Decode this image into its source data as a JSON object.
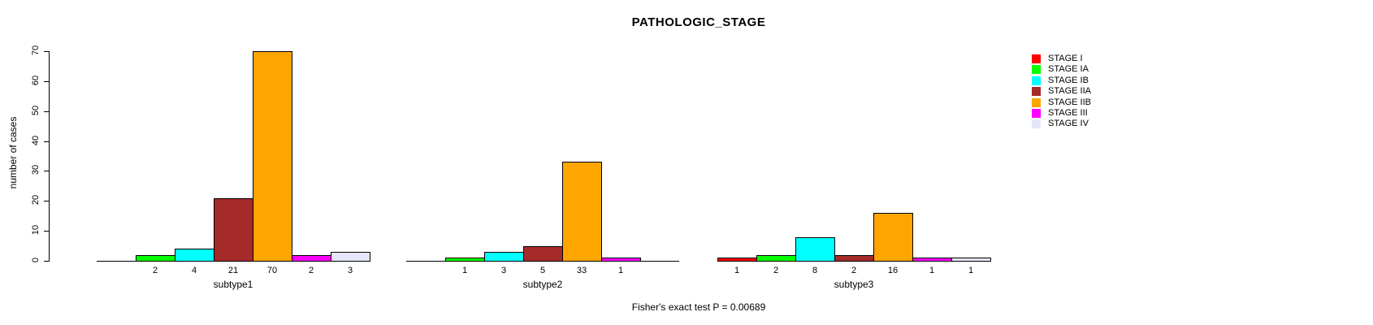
{
  "chart_data": {
    "type": "bar",
    "title": "PATHOLOGIC_STAGE",
    "ylabel": "number of cases",
    "xlabel": "",
    "ylim": [
      0,
      70
    ],
    "yticks": [
      0,
      10,
      20,
      30,
      40,
      50,
      60,
      70
    ],
    "grid": false,
    "legend_position": "right-outside-top",
    "groups": [
      "subtype1",
      "subtype2",
      "subtype3"
    ],
    "series": [
      {
        "name": "STAGE I",
        "color": "#FF0000",
        "values": [
          0,
          0,
          1
        ]
      },
      {
        "name": "STAGE IA",
        "color": "#00FF00",
        "values": [
          2,
          1,
          2
        ]
      },
      {
        "name": "STAGE IB",
        "color": "#00FFFF",
        "values": [
          4,
          3,
          8
        ]
      },
      {
        "name": "STAGE IIA",
        "color": "#A52A2A",
        "values": [
          21,
          5,
          2
        ]
      },
      {
        "name": "STAGE IIB",
        "color": "#FFA500",
        "values": [
          70,
          33,
          16
        ]
      },
      {
        "name": "STAGE III",
        "color": "#FF00FF",
        "values": [
          2,
          1,
          1
        ]
      },
      {
        "name": "STAGE IV",
        "color": "#E6E6FA",
        "values": [
          3,
          0,
          1
        ]
      }
    ],
    "bar_value_labels": {
      "subtype1": [
        null,
        2,
        4,
        21,
        70,
        2,
        3
      ],
      "subtype2": [
        null,
        1,
        3,
        5,
        33,
        1,
        null
      ],
      "subtype3": [
        1,
        2,
        8,
        2,
        16,
        1,
        1
      ]
    },
    "annotation": "Fisher's exact test P = 0.00689",
    "axis_color": "#000000",
    "text_color": "#000000",
    "background_color": "#FFFFFF"
  }
}
